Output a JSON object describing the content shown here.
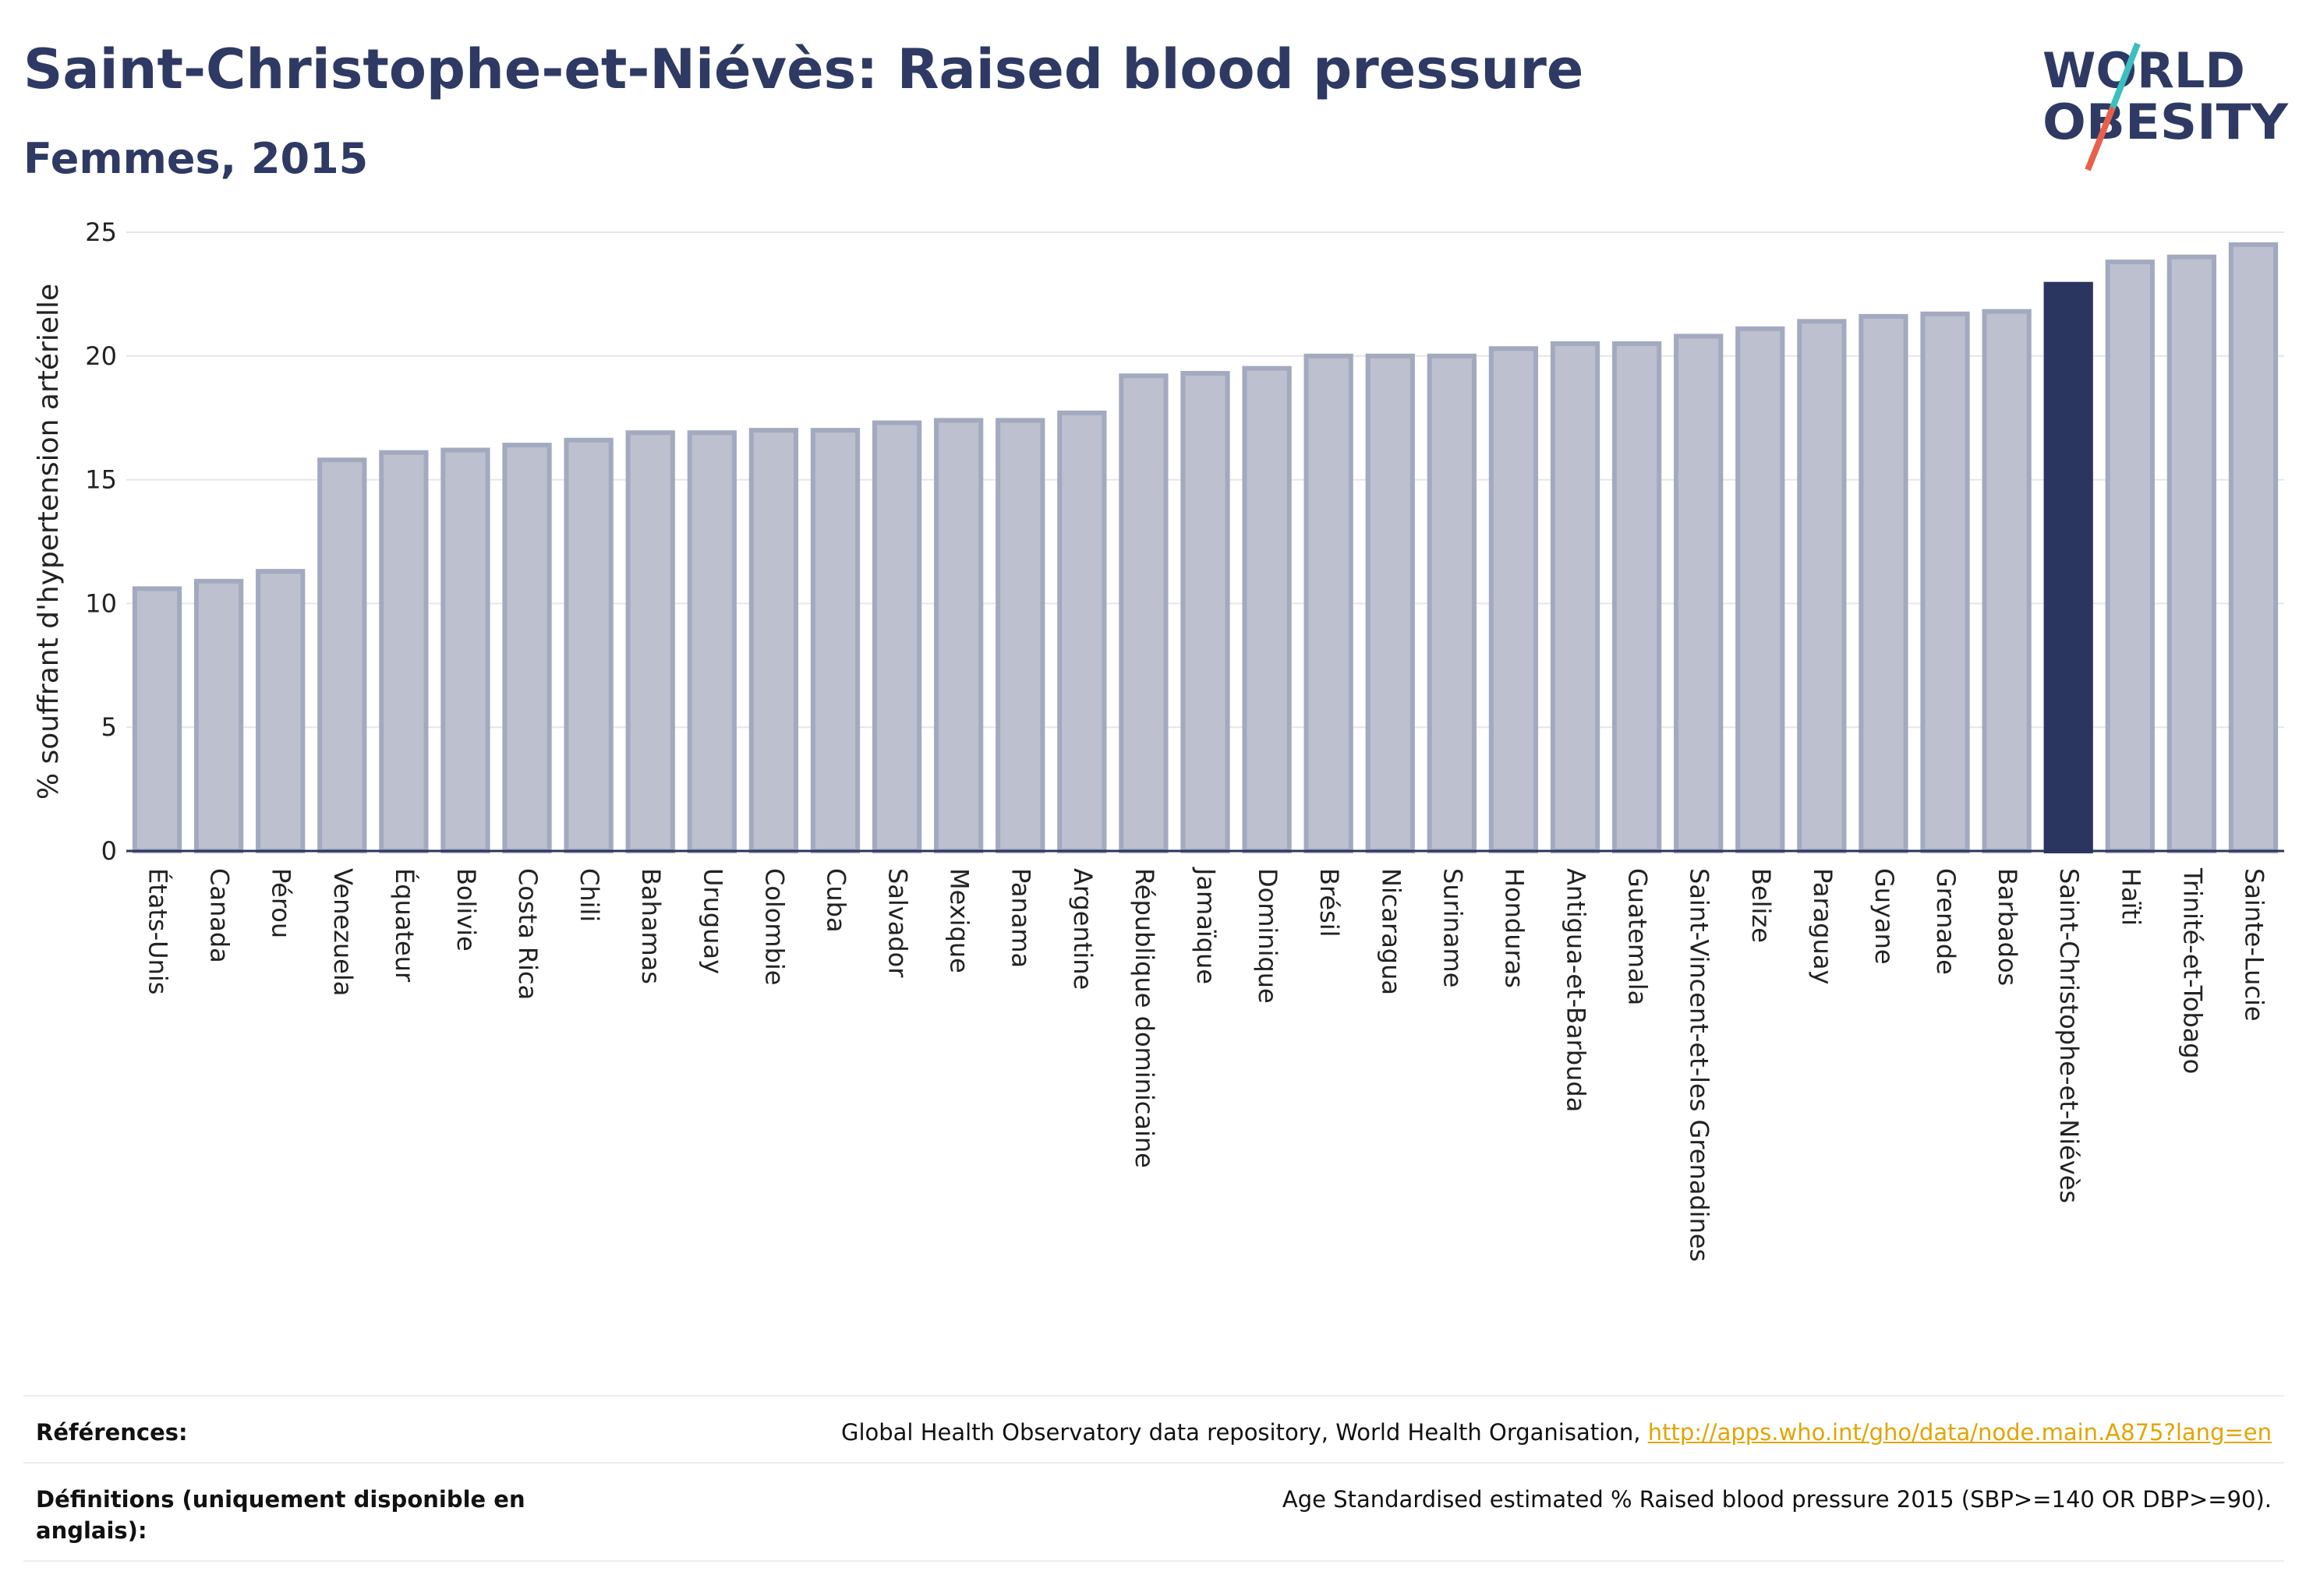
{
  "header": {
    "title": "Saint-Christophe-et-Niévès: Raised blood pressure",
    "subtitle": "Femmes, 2015"
  },
  "logo": {
    "line1": "WORLD",
    "line2": "OBESITY",
    "text_color": "#2e3a63",
    "slash_colors": [
      "#3bbfbf",
      "#e8604c"
    ]
  },
  "colors": {
    "bar_default": "#bcc0cf",
    "bar_border": "#a3a9bf",
    "bar_highlight": "#2b3660",
    "axis": "#2a3560",
    "grid": "#e6e6e6"
  },
  "chart_data": {
    "type": "bar",
    "ylabel": "% souffrant d'hypertension artérielle",
    "ylim": [
      0,
      25
    ],
    "yticks": [
      0,
      5,
      10,
      15,
      20,
      25
    ],
    "grid": true,
    "highlight": "Saint-Christophe-et-Niévès",
    "categories": [
      "États-Unis",
      "Canada",
      "Pérou",
      "Venezuela",
      "Équateur",
      "Bolivie",
      "Costa Rica",
      "Chili",
      "Bahamas",
      "Uruguay",
      "Colombie",
      "Cuba",
      "Salvador",
      "Mexique",
      "Panama",
      "Argentine",
      "République dominicaine",
      "Jamaïque",
      "Dominique",
      "Brésil",
      "Nicaragua",
      "Suriname",
      "Honduras",
      "Antigua-et-Barbuda",
      "Guatemala",
      "Saint-Vincent-et-les Grenadines",
      "Belize",
      "Paraguay",
      "Guyane",
      "Grenade",
      "Barbados",
      "Saint-Christophe-et-Niévès",
      "Haïti",
      "Trinité-et-Tobago",
      "Sainte-Lucie"
    ],
    "values": [
      10.6,
      10.9,
      11.3,
      15.8,
      16.1,
      16.2,
      16.4,
      16.6,
      16.9,
      16.9,
      17.0,
      17.0,
      17.3,
      17.4,
      17.4,
      17.7,
      19.2,
      19.3,
      19.5,
      20.0,
      20.0,
      20.0,
      20.3,
      20.5,
      20.5,
      20.8,
      21.1,
      21.4,
      21.6,
      21.7,
      21.8,
      22.9,
      23.8,
      24.0,
      24.5
    ]
  },
  "references": {
    "label": "Références:",
    "text": "Global Health Observatory data repository, World Health Organisation, ",
    "link": "http://apps.who.int/gho/data/node.main.A875?lang=en"
  },
  "definitions": {
    "label": "Définitions (uniquement disponible en anglais):",
    "text": "Age Standardised estimated % Raised blood pressure 2015 (SBP>=140 OR DBP>=90)."
  }
}
